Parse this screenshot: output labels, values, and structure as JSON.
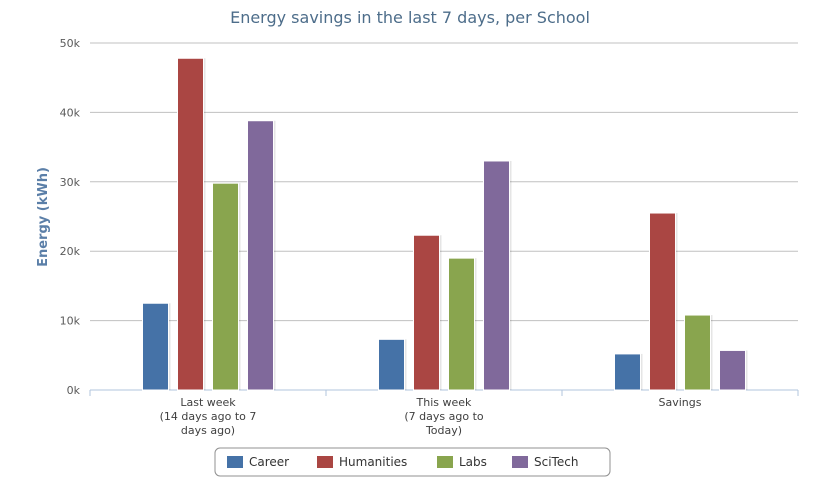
{
  "chart_data": {
    "type": "bar",
    "title": "Energy savings in the last 7 days, per School",
    "xlabel": "",
    "ylabel": "Energy (kWh)",
    "ylim": [
      0,
      50000
    ],
    "yticks": [
      0,
      10000,
      20000,
      30000,
      40000,
      50000
    ],
    "ytick_labels": [
      "0k",
      "10k",
      "20k",
      "30k",
      "40k",
      "50k"
    ],
    "grid": true,
    "legend_position": "bottom",
    "categories": [
      [
        "Last week",
        "(14 days ago to 7",
        "days ago)"
      ],
      [
        "This week",
        "(7 days ago to",
        "Today)"
      ],
      [
        "Savings"
      ]
    ],
    "series": [
      {
        "name": "Career",
        "color": "#4572a7",
        "values": [
          12500,
          7300,
          5200
        ]
      },
      {
        "name": "Humanities",
        "color": "#aa4643",
        "values": [
          47800,
          22300,
          25500
        ]
      },
      {
        "name": "Labs",
        "color": "#89a54e",
        "values": [
          29800,
          19000,
          10800
        ]
      },
      {
        "name": "SciTech",
        "color": "#80699b",
        "values": [
          38800,
          33000,
          5700
        ]
      }
    ]
  }
}
